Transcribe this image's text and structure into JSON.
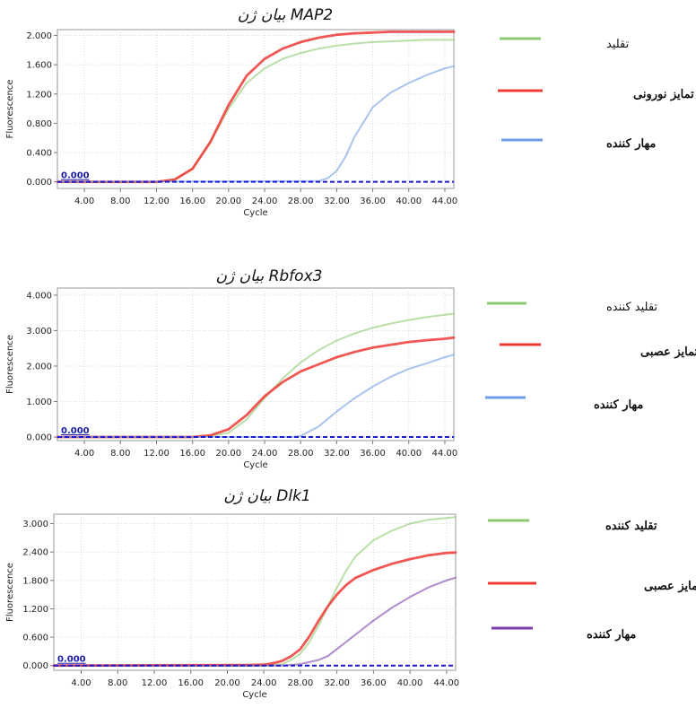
{
  "chart_data": [
    {
      "type": "line",
      "title": "بیان ژن MAP2",
      "xlabel": "Cycle",
      "ylabel": "Fluorescence",
      "xlim": [
        1,
        45
      ],
      "ylim": [
        -0.09,
        2.08
      ],
      "x_ticks": [
        "4.00",
        "8.00",
        "12.00",
        "16.00",
        "20.00",
        "24.00",
        "28.00",
        "32.00",
        "36.00",
        "40.00",
        "44.00"
      ],
      "y_ticks": [
        "0.000",
        "0.400",
        "0.800",
        "1.200",
        "1.600",
        "2.000"
      ],
      "threshold_label": "0.000",
      "threshold": 0.0,
      "grid": true,
      "legend_position": "right",
      "series": [
        {
          "name": "تقلید",
          "color": "#8dc96e",
          "opacity": 1,
          "x": [
            1,
            12,
            14,
            16,
            18,
            20,
            22,
            24,
            26,
            28,
            30,
            32,
            34,
            36,
            38,
            40,
            42,
            44,
            45
          ],
          "y": [
            0,
            0,
            0.03,
            0.18,
            0.55,
            1.0,
            1.35,
            1.55,
            1.68,
            1.76,
            1.82,
            1.86,
            1.89,
            1.91,
            1.92,
            1.93,
            1.94,
            1.94,
            1.94
          ]
        },
        {
          "name": "تقلید کننده/ تمایز نورونی",
          "color": "#ee3a36",
          "opacity": 1,
          "x": [
            1,
            12,
            14,
            16,
            18,
            20,
            22,
            24,
            26,
            28,
            30,
            32,
            34,
            36,
            38,
            40,
            42,
            44,
            45
          ],
          "y": [
            0,
            0,
            0.03,
            0.18,
            0.55,
            1.05,
            1.45,
            1.68,
            1.82,
            1.91,
            1.97,
            2.01,
            2.03,
            2.04,
            2.05,
            2.05,
            2.05,
            2.05,
            2.05
          ]
        },
        {
          "name": "مهار کننده",
          "color": "#6f9de3",
          "opacity": 1,
          "x": [
            1,
            30,
            31,
            32,
            33,
            34,
            36,
            38,
            40,
            42,
            44,
            45
          ],
          "y": [
            0,
            0.01,
            0.05,
            0.15,
            0.35,
            0.62,
            1.02,
            1.22,
            1.35,
            1.46,
            1.55,
            1.58
          ]
        }
      ]
    },
    {
      "type": "line",
      "title": "بیان ژن Rbfox3",
      "xlabel": "Cycle",
      "ylabel": "Fluorescence",
      "xlim": [
        1,
        45
      ],
      "ylim": [
        -0.1,
        4.2
      ],
      "x_ticks": [
        "4.00",
        "8.00",
        "12.00",
        "16.00",
        "20.00",
        "24.00",
        "28.00",
        "32.00",
        "36.00",
        "40.00",
        "44.00"
      ],
      "y_ticks": [
        "0.000",
        "1.000",
        "2.000",
        "3.000",
        "4.000"
      ],
      "threshold_label": "0.000",
      "threshold": 0.0,
      "grid": true,
      "legend_position": "right",
      "series": [
        {
          "name": "تقلید کننده",
          "color": "#8dc96e",
          "opacity": 1,
          "x": [
            1,
            16,
            18,
            20,
            22,
            24,
            26,
            28,
            30,
            32,
            34,
            36,
            38,
            40,
            42,
            44,
            45
          ],
          "y": [
            0,
            0,
            0.03,
            0.12,
            0.5,
            1.1,
            1.65,
            2.1,
            2.45,
            2.72,
            2.92,
            3.08,
            3.2,
            3.3,
            3.38,
            3.45,
            3.48
          ]
        },
        {
          "name": "تقلید کننده/ تمایز عصبی",
          "color": "#ee3a36",
          "opacity": 1,
          "x": [
            1,
            16,
            18,
            20,
            22,
            24,
            26,
            28,
            30,
            32,
            34,
            36,
            38,
            40,
            42,
            44,
            45
          ],
          "y": [
            0,
            0,
            0.05,
            0.22,
            0.62,
            1.15,
            1.55,
            1.85,
            2.05,
            2.25,
            2.4,
            2.52,
            2.6,
            2.68,
            2.73,
            2.77,
            2.8
          ]
        },
        {
          "name": "مهار کننده",
          "color": "#6f9de3",
          "opacity": 1,
          "x": [
            1,
            27,
            28,
            30,
            32,
            34,
            36,
            38,
            40,
            42,
            44,
            45
          ],
          "y": [
            0,
            0,
            0.03,
            0.3,
            0.72,
            1.1,
            1.42,
            1.7,
            1.92,
            2.08,
            2.25,
            2.32
          ]
        }
      ]
    },
    {
      "type": "line",
      "title": "بیان ژن Dlk1",
      "xlabel": "Cycle",
      "ylabel": "Fluorescence",
      "xlim": [
        1,
        45
      ],
      "ylim": [
        -0.1,
        3.2
      ],
      "x_ticks": [
        "4.00",
        "8.00",
        "12.00",
        "16.00",
        "20.00",
        "24.00",
        "28.00",
        "32.00",
        "36.00",
        "40.00",
        "44.00"
      ],
      "y_ticks": [
        "0.000",
        "0.600",
        "1.200",
        "1.800",
        "2.400",
        "3.000"
      ],
      "threshold_label": "0.000",
      "threshold": 0.0,
      "grid": true,
      "legend_position": "right",
      "series": [
        {
          "name": "تقلید کننده",
          "color": "#8dc96e",
          "opacity": 1,
          "x": [
            1,
            24,
            26,
            27,
            28,
            29,
            30,
            31,
            32,
            33,
            34,
            36,
            38,
            40,
            42,
            44,
            45
          ],
          "y": [
            0,
            0,
            0.03,
            0.12,
            0.25,
            0.5,
            0.85,
            1.25,
            1.65,
            2.0,
            2.3,
            2.65,
            2.85,
            3.0,
            3.08,
            3.12,
            3.14
          ]
        },
        {
          "name": "تقلید کننده/تمایز عصبی",
          "color": "#ee3a36",
          "opacity": 1,
          "x": [
            1,
            20,
            22,
            24,
            25,
            26,
            27,
            28,
            29,
            30,
            31,
            32,
            33,
            34,
            36,
            38,
            40,
            42,
            44,
            45
          ],
          "y": [
            0,
            0.01,
            0.01,
            0.02,
            0.05,
            0.1,
            0.2,
            0.35,
            0.62,
            0.95,
            1.25,
            1.5,
            1.7,
            1.85,
            2.02,
            2.15,
            2.25,
            2.33,
            2.38,
            2.39
          ]
        },
        {
          "name": "مهار کننده",
          "color": "#7a3fa8",
          "opacity": 1,
          "x": [
            1,
            26,
            28,
            30,
            31,
            32,
            34,
            36,
            38,
            40,
            42,
            44,
            45
          ],
          "y": [
            0,
            0,
            0.03,
            0.12,
            0.2,
            0.35,
            0.65,
            0.95,
            1.22,
            1.45,
            1.65,
            1.8,
            1.86
          ]
        }
      ]
    }
  ]
}
